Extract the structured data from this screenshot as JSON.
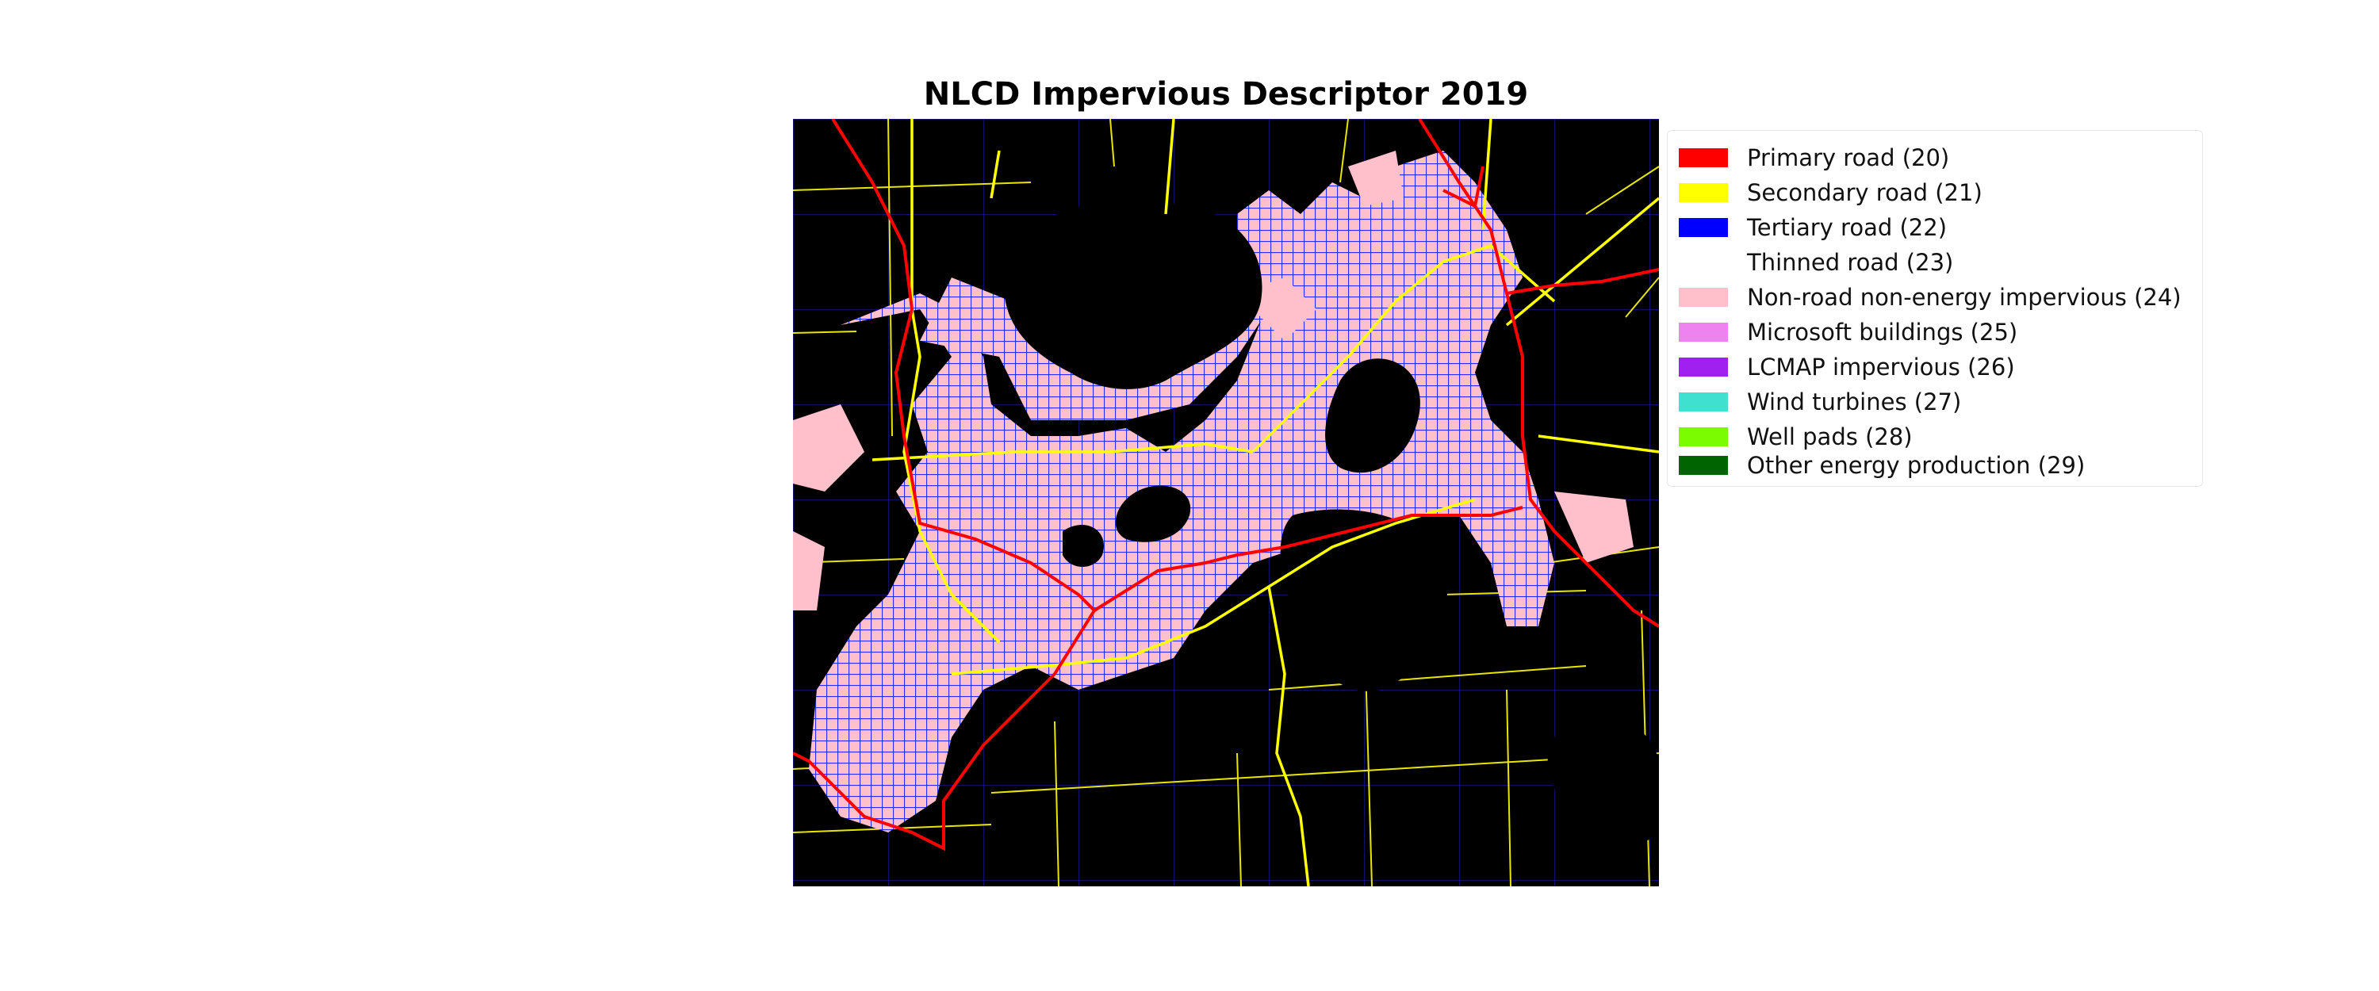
{
  "title": "NLCD Impervious Descriptor 2019",
  "map": {
    "background_color": "#000000",
    "description_icons": [
      "lake-icon",
      "road-icon"
    ]
  },
  "legend": {
    "placement": "upper-right outside map",
    "items": [
      {
        "label": "Primary road (20)",
        "color": "#ff0000"
      },
      {
        "label": "Secondary road (21)",
        "color": "#ffff00"
      },
      {
        "label": "Tertiary road (22)",
        "color": "#0000ff"
      },
      {
        "label": "Thinned road (23)",
        "color": "#ffffff"
      },
      {
        "label": "Non-road non-energy impervious (24)",
        "color": "#ffc0cb"
      },
      {
        "label": "Microsoft buildings (25)",
        "color": "#ee82ee"
      },
      {
        "label": "LCMAP impervious (26)",
        "color": "#a020f0"
      },
      {
        "label": "Wind turbines (27)",
        "color": "#40e0d0"
      },
      {
        "label": "Well pads (28)",
        "color": "#7cfc00"
      },
      {
        "label": "Other energy production (29)",
        "color": "#006400"
      }
    ]
  }
}
